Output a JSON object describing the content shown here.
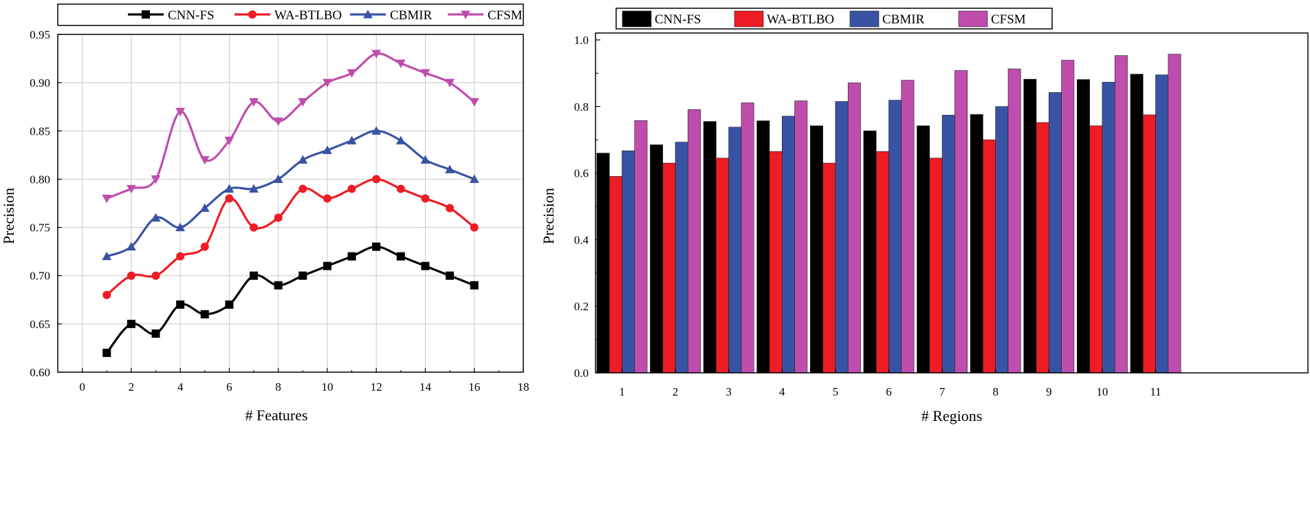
{
  "chart_data": [
    {
      "type": "line",
      "title": "",
      "xlabel": "# Features",
      "ylabel": "Precision",
      "xlim": [
        -1,
        18
      ],
      "ylim": [
        0.6,
        0.95
      ],
      "xticks": [
        0,
        2,
        4,
        6,
        8,
        10,
        12,
        14,
        16,
        18
      ],
      "yticks": [
        0.6,
        0.65,
        0.7,
        0.75,
        0.8,
        0.85,
        0.9,
        0.95
      ],
      "xtick_labels": [
        "0",
        "2",
        "4",
        "6",
        "8",
        "10",
        "12",
        "14",
        "16",
        "18"
      ],
      "ytick_labels": [
        "0.60",
        "0.65",
        "0.70",
        "0.75",
        "0.80",
        "0.85",
        "0.90",
        "0.95"
      ],
      "grid": true,
      "legend_position": "top",
      "x": [
        1,
        2,
        3,
        4,
        5,
        6,
        7,
        8,
        9,
        10,
        11,
        12,
        13,
        14,
        15,
        16
      ],
      "series": [
        {
          "name": "CNN-FS",
          "color": "#000000",
          "marker": "square",
          "values": [
            0.62,
            0.65,
            0.64,
            0.67,
            0.66,
            0.67,
            0.7,
            0.69,
            0.7,
            0.71,
            0.72,
            0.73,
            0.72,
            0.71,
            0.7,
            0.69
          ]
        },
        {
          "name": "WA-BTLBO",
          "color": "#ee1c24",
          "marker": "circle",
          "values": [
            0.68,
            0.7,
            0.7,
            0.72,
            0.73,
            0.78,
            0.75,
            0.76,
            0.79,
            0.78,
            0.79,
            0.8,
            0.79,
            0.78,
            0.77,
            0.75
          ]
        },
        {
          "name": "CBMIR",
          "color": "#3953a4",
          "marker": "triangle-up",
          "values": [
            0.72,
            0.73,
            0.76,
            0.75,
            0.77,
            0.79,
            0.79,
            0.8,
            0.82,
            0.83,
            0.84,
            0.85,
            0.84,
            0.82,
            0.81,
            0.8
          ]
        },
        {
          "name": "CFSM",
          "color": "#bf4dac",
          "marker": "triangle-down",
          "values": [
            0.78,
            0.79,
            0.8,
            0.87,
            0.82,
            0.84,
            0.88,
            0.86,
            0.88,
            0.9,
            0.91,
            0.93,
            0.92,
            0.91,
            0.9,
            0.88
          ]
        }
      ]
    },
    {
      "type": "bar",
      "title": "",
      "xlabel": "# Regions",
      "ylabel": "Precision",
      "ylim": [
        0.0,
        1.0
      ],
      "yticks": [
        0.0,
        0.2,
        0.4,
        0.6,
        0.8,
        1.0
      ],
      "ytick_labels": [
        "0.0",
        "0.2",
        "0.4",
        "0.6",
        "0.8",
        "1.0"
      ],
      "grid": false,
      "legend_position": "top",
      "categories": [
        "1",
        "2",
        "3",
        "4",
        "5",
        "6",
        "7",
        "8",
        "9",
        "10",
        "11"
      ],
      "series": [
        {
          "name": "CNN-FS",
          "color": "#000000",
          "values": [
            0.66,
            0.685,
            0.755,
            0.757,
            0.742,
            0.727,
            0.742,
            0.776,
            0.882,
            0.881,
            0.897
          ]
        },
        {
          "name": "WA-BTLBO",
          "color": "#ee1c24",
          "values": [
            0.59,
            0.63,
            0.645,
            0.665,
            0.63,
            0.665,
            0.645,
            0.7,
            0.752,
            0.742,
            0.775
          ]
        },
        {
          "name": "CBMIR",
          "color": "#3953a4",
          "values": [
            0.667,
            0.693,
            0.738,
            0.771,
            0.815,
            0.819,
            0.774,
            0.8,
            0.842,
            0.873,
            0.895
          ]
        },
        {
          "name": "CFSM",
          "color": "#bf4dac",
          "values": [
            0.758,
            0.791,
            0.811,
            0.817,
            0.871,
            0.879,
            0.908,
            0.913,
            0.939,
            0.953,
            0.957
          ]
        }
      ]
    }
  ]
}
